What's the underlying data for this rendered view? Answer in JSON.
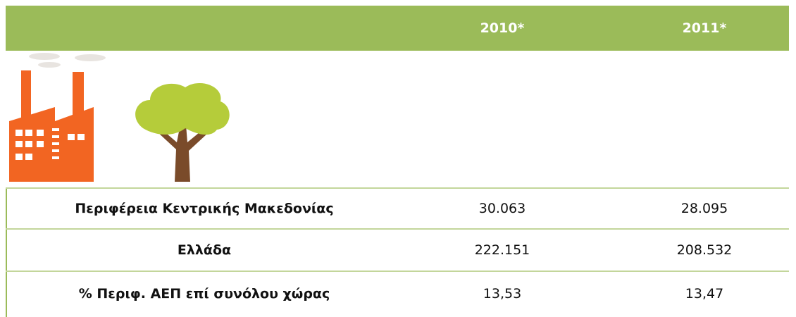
{
  "table": {
    "header": [
      "2010*",
      "2011*"
    ],
    "rows": [
      [
        "Περιφέρεια Κεντρικής Μακεδονίας",
        "30.063",
        "28.095"
      ],
      [
        "Ελλάδα",
        "222.151",
        "208.532"
      ],
      [
        "% Περιφ. ΑΕΠ επί συνόλου χώρας",
        "13,53",
        "13,47"
      ]
    ]
  }
}
